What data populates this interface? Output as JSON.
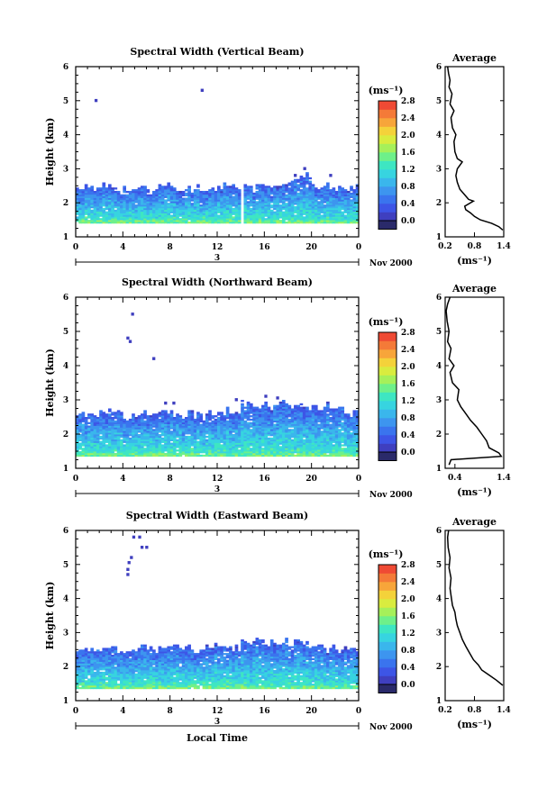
{
  "chart_data": [
    {
      "type": "heatmap",
      "title": "Spectral Width (Vertical Beam)",
      "ylabel": "Height (km)",
      "xlabel": "",
      "xlim": [
        0,
        24
      ],
      "ylim": [
        1,
        6
      ],
      "x_ticks": [
        "0",
        "4",
        "8",
        "12",
        "16",
        "20",
        "0"
      ],
      "y_ticks": [
        "1",
        "2",
        "3",
        "4",
        "5",
        "6"
      ],
      "date_day": "3",
      "date_label": "Nov 2000",
      "data_top_km": [
        2.45,
        2.4,
        2.45,
        2.35,
        2.42,
        2.4,
        2.3,
        2.45,
        2.4,
        2.38,
        2.42,
        2.35,
        2.45,
        2.4,
        2.5,
        2.42,
        2.4,
        2.55,
        2.6,
        2.8,
        2.5,
        2.45,
        2.4,
        2.45
      ],
      "data_floor_km": 1.4,
      "gap_hour": 14,
      "sparse_points": [
        [
          1.6,
          5.0
        ],
        [
          10.6,
          5.3
        ],
        [
          19.3,
          3.0
        ],
        [
          18.5,
          2.8
        ],
        [
          21.5,
          2.8
        ]
      ],
      "colorbar": {
        "unit": "(ms⁻¹)",
        "ticks": [
          "0.0",
          "0.4",
          "0.8",
          "1.2",
          "1.6",
          "2.0",
          "2.4",
          "2.8"
        ]
      },
      "profile": {
        "title": "Average",
        "xlabel": "(ms⁻¹)",
        "x_ticks": [
          "0.2",
          "0.8",
          "1.4"
        ],
        "y_ticks": [
          "1",
          "2",
          "3",
          "4",
          "5",
          "6"
        ],
        "xlim": [
          0.2,
          1.4
        ],
        "points": [
          [
            1.38,
            1.2
          ],
          [
            1.3,
            1.3
          ],
          [
            1.15,
            1.4
          ],
          [
            0.92,
            1.5
          ],
          [
            0.8,
            1.6
          ],
          [
            0.72,
            1.7
          ],
          [
            0.62,
            1.8
          ],
          [
            0.6,
            1.9
          ],
          [
            0.78,
            2.05
          ],
          [
            0.68,
            2.1
          ],
          [
            0.62,
            2.2
          ],
          [
            0.5,
            2.4
          ],
          [
            0.45,
            2.6
          ],
          [
            0.42,
            2.8
          ],
          [
            0.45,
            3.0
          ],
          [
            0.55,
            3.2
          ],
          [
            0.45,
            3.3
          ],
          [
            0.4,
            3.5
          ],
          [
            0.38,
            3.8
          ],
          [
            0.42,
            4.0
          ],
          [
            0.35,
            4.2
          ],
          [
            0.32,
            4.5
          ],
          [
            0.38,
            4.7
          ],
          [
            0.3,
            4.9
          ],
          [
            0.34,
            5.2
          ],
          [
            0.28,
            5.4
          ],
          [
            0.3,
            5.6
          ],
          [
            0.27,
            5.8
          ],
          [
            0.25,
            6.0
          ]
        ]
      }
    },
    {
      "type": "heatmap",
      "title": "Spectral Width (Northward Beam)",
      "ylabel": "Height (km)",
      "xlabel": "",
      "xlim": [
        0,
        24
      ],
      "ylim": [
        1,
        6
      ],
      "x_ticks": [
        "0",
        "4",
        "8",
        "12",
        "16",
        "20",
        "0"
      ],
      "y_ticks": [
        "1",
        "2",
        "3",
        "4",
        "5",
        "6"
      ],
      "date_day": "3",
      "date_label": "Nov 2000",
      "data_top_km": [
        2.6,
        2.55,
        2.65,
        2.6,
        2.5,
        2.6,
        2.55,
        2.65,
        2.6,
        2.55,
        2.5,
        2.6,
        2.65,
        2.6,
        2.9,
        2.85,
        2.8,
        2.9,
        2.85,
        2.8,
        2.75,
        2.8,
        2.7,
        2.6
      ],
      "data_floor_km": 1.35,
      "gap_hour": -1,
      "sparse_points": [
        [
          4.7,
          5.5
        ],
        [
          4.3,
          4.8
        ],
        [
          4.5,
          4.7
        ],
        [
          6.5,
          4.2
        ],
        [
          16,
          3.1
        ],
        [
          17,
          3.05
        ],
        [
          13.5,
          3.0
        ],
        [
          7.5,
          2.9
        ],
        [
          8.2,
          2.9
        ]
      ],
      "colorbar": {
        "unit": "(ms⁻¹)",
        "ticks": [
          "0.0",
          "0.4",
          "0.8",
          "1.2",
          "1.6",
          "2.0",
          "2.4",
          "2.8"
        ]
      },
      "profile": {
        "title": "Average",
        "xlabel": "(ms⁻¹)",
        "x_ticks": [
          "0.4",
          "1.4"
        ],
        "y_ticks": [
          "1",
          "2",
          "3",
          "4",
          "5",
          "6"
        ],
        "xlim": [
          0.2,
          1.4
        ],
        "points": [
          [
            0.28,
            1.1
          ],
          [
            0.32,
            1.25
          ],
          [
            1.35,
            1.35
          ],
          [
            1.3,
            1.45
          ],
          [
            1.1,
            1.6
          ],
          [
            1.05,
            1.8
          ],
          [
            0.95,
            2.0
          ],
          [
            0.85,
            2.2
          ],
          [
            0.72,
            2.4
          ],
          [
            0.62,
            2.6
          ],
          [
            0.52,
            2.8
          ],
          [
            0.45,
            3.0
          ],
          [
            0.48,
            3.3
          ],
          [
            0.35,
            3.5
          ],
          [
            0.3,
            3.8
          ],
          [
            0.38,
            4.0
          ],
          [
            0.28,
            4.2
          ],
          [
            0.32,
            4.5
          ],
          [
            0.25,
            4.7
          ],
          [
            0.28,
            5.0
          ],
          [
            0.24,
            5.3
          ],
          [
            0.22,
            5.6
          ],
          [
            0.25,
            5.8
          ],
          [
            0.3,
            6.0
          ]
        ]
      }
    },
    {
      "type": "heatmap",
      "title": "Spectral Width (Eastward Beam)",
      "ylabel": "Height (km)",
      "xlabel": "Local Time",
      "xlim": [
        0,
        24
      ],
      "ylim": [
        1,
        6
      ],
      "x_ticks": [
        "0",
        "4",
        "8",
        "12",
        "16",
        "20",
        "0"
      ],
      "y_ticks": [
        "1",
        "2",
        "3",
        "4",
        "5",
        "6"
      ],
      "date_day": "3",
      "date_label": "Nov 2000",
      "data_top_km": [
        2.5,
        2.45,
        2.5,
        2.45,
        2.4,
        2.5,
        2.45,
        2.5,
        2.6,
        2.5,
        2.45,
        2.55,
        2.5,
        2.55,
        2.75,
        2.7,
        2.65,
        2.7,
        2.65,
        2.6,
        2.55,
        2.5,
        2.45,
        2.5
      ],
      "data_floor_km": 1.35,
      "gap_hour": -1,
      "sparse_points": [
        [
          4.8,
          5.8
        ],
        [
          5.3,
          5.8
        ],
        [
          5.5,
          5.5
        ],
        [
          5.9,
          5.5
        ],
        [
          4.6,
          5.2
        ],
        [
          4.4,
          5.05
        ],
        [
          4.3,
          4.85
        ],
        [
          4.3,
          4.7
        ]
      ],
      "colorbar": {
        "unit": "(ms⁻¹)",
        "ticks": [
          "0.0",
          "0.4",
          "0.8",
          "1.2",
          "1.6",
          "2.0",
          "2.4",
          "2.8"
        ]
      },
      "profile": {
        "title": "Average",
        "xlabel": "(ms⁻¹)",
        "x_ticks": [
          "0.2",
          "0.8",
          "1.4"
        ],
        "y_ticks": [
          "1",
          "2",
          "3",
          "4",
          "5",
          "6"
        ],
        "xlim": [
          0.2,
          1.4
        ],
        "points": [
          [
            1.38,
            1.45
          ],
          [
            1.25,
            1.6
          ],
          [
            1.1,
            1.75
          ],
          [
            0.95,
            1.9
          ],
          [
            0.88,
            2.05
          ],
          [
            0.78,
            2.2
          ],
          [
            0.7,
            2.4
          ],
          [
            0.62,
            2.6
          ],
          [
            0.55,
            2.8
          ],
          [
            0.5,
            3.0
          ],
          [
            0.45,
            3.2
          ],
          [
            0.42,
            3.4
          ],
          [
            0.4,
            3.6
          ],
          [
            0.35,
            3.8
          ],
          [
            0.33,
            4.0
          ],
          [
            0.3,
            4.3
          ],
          [
            0.32,
            4.6
          ],
          [
            0.28,
            4.9
          ],
          [
            0.3,
            5.2
          ],
          [
            0.26,
            5.5
          ],
          [
            0.25,
            5.8
          ],
          [
            0.27,
            6.0
          ]
        ]
      }
    }
  ]
}
